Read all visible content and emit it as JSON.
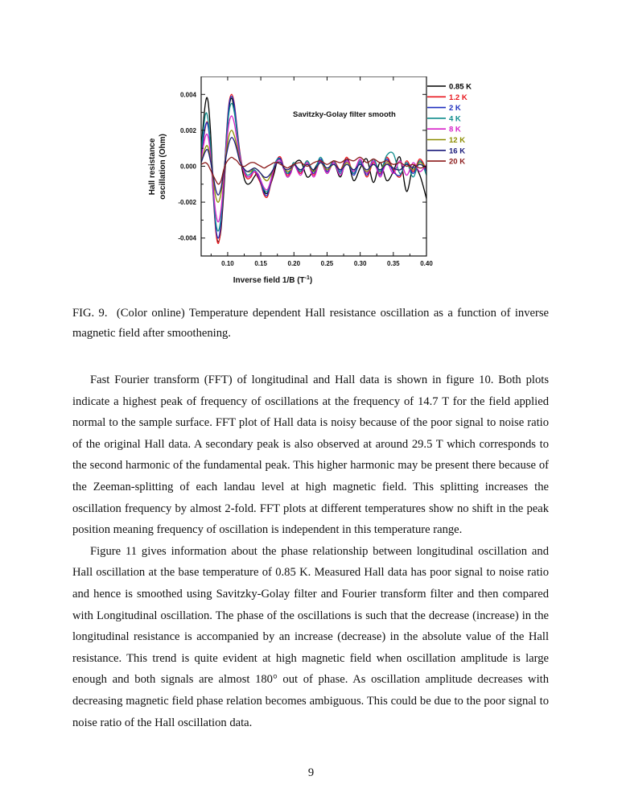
{
  "figure": {
    "label": "FIG. 9.",
    "caption": "(Color online) Temperature dependent Hall resistance oscillation as a function of inverse magnetic field after smoothening."
  },
  "chart_data": {
    "type": "line",
    "annotation": "Savitzky-Golay filter smooth",
    "xlabel": "Inverse field 1/B (T⁻¹)",
    "ylabel_line1": "Hall resistance",
    "ylabel_line2": "oscillation  (Ohm)",
    "xlim": [
      0.06,
      0.4
    ],
    "ylim": [
      -0.005,
      0.005
    ],
    "xticks": [
      0.1,
      0.15,
      0.2,
      0.25,
      0.3,
      0.35,
      0.4
    ],
    "xtick_labels": [
      "0.10",
      "0.15",
      "0.20",
      "0.25",
      "0.30",
      "0.35",
      "0.40"
    ],
    "yticks": [
      -0.004,
      -0.002,
      0.0,
      0.002,
      0.004
    ],
    "ytick_labels": [
      "-0.004",
      "-0.002",
      "0.000",
      "0.002",
      "0.004"
    ],
    "legend_position": "right, outside plot",
    "series": [
      {
        "name": "0.85 K",
        "color": "#000000",
        "x": [
          0.06,
          0.066,
          0.07,
          0.074,
          0.078,
          0.082,
          0.086,
          0.09,
          0.094,
          0.098,
          0.102,
          0.106,
          0.11,
          0.114,
          0.118,
          0.122,
          0.126,
          0.13,
          0.135,
          0.14,
          0.145,
          0.15,
          0.155,
          0.16,
          0.165,
          0.17,
          0.175,
          0.18,
          0.185,
          0.19,
          0.195,
          0.2,
          0.21,
          0.22,
          0.23,
          0.24,
          0.25,
          0.26,
          0.27,
          0.28,
          0.29,
          0.3,
          0.31,
          0.32,
          0.33,
          0.34,
          0.35,
          0.36,
          0.37,
          0.38,
          0.39,
          0.4
        ],
        "y": [
          0.001,
          0.0034,
          0.0037,
          0.002,
          -0.001,
          -0.0035,
          -0.0042,
          -0.0035,
          -0.0015,
          0.001,
          0.0032,
          0.0038,
          0.0031,
          0.002,
          0.0008,
          -0.0002,
          -0.0008,
          -0.001,
          -0.0009,
          -0.0006,
          -0.0004,
          -0.0008,
          -0.0014,
          -0.0015,
          -0.001,
          -0.0004,
          0.0003,
          0.0004,
          -0.0002,
          -0.0006,
          -0.0004,
          0.0001,
          0.0003,
          -0.0006,
          -0.0002,
          0.0003,
          -0.0004,
          0.0002,
          -0.0006,
          0.0004,
          -0.0008,
          -0.0001,
          0.0004,
          -0.0009,
          0.0002,
          -0.0008,
          -0.0003,
          0.0005,
          -0.0014,
          0.0,
          -0.0005,
          -0.0018
        ]
      },
      {
        "name": "1.2 K",
        "color": "#e8151c",
        "x": [
          0.06,
          0.066,
          0.07,
          0.074,
          0.078,
          0.082,
          0.086,
          0.09,
          0.094,
          0.098,
          0.102,
          0.106,
          0.11,
          0.114,
          0.118,
          0.122,
          0.126,
          0.13,
          0.135,
          0.14,
          0.145,
          0.15,
          0.155,
          0.16,
          0.165,
          0.17,
          0.175,
          0.18,
          0.185,
          0.19,
          0.195,
          0.2,
          0.21,
          0.22,
          0.23,
          0.24,
          0.25,
          0.26,
          0.27,
          0.28,
          0.29,
          0.3,
          0.31,
          0.32,
          0.33,
          0.34,
          0.35,
          0.36,
          0.37,
          0.38,
          0.39,
          0.4
        ],
        "y": [
          0.0005,
          0.0021,
          0.0024,
          0.001,
          -0.0015,
          -0.0036,
          -0.0043,
          -0.0033,
          -0.001,
          0.0017,
          0.0035,
          0.004,
          0.0035,
          0.0022,
          0.0009,
          0.0,
          -0.0005,
          -0.0007,
          -0.0006,
          -0.0003,
          -0.0006,
          -0.001,
          -0.0016,
          -0.0017,
          -0.001,
          -0.0002,
          0.0004,
          0.0005,
          -0.0001,
          -0.0005,
          -0.0003,
          0.0002,
          -0.0004,
          0.0003,
          -0.0005,
          0.0004,
          -0.0003,
          0.0003,
          -0.0002,
          0.0005,
          -0.0004,
          0.0003,
          -0.0006,
          0.0002,
          -0.0004,
          0.0005,
          -0.0002,
          -0.0006,
          0.0003,
          -0.0003,
          0.0004,
          -0.0002
        ]
      },
      {
        "name": "2 K",
        "color": "#1f2fbf",
        "x": [
          0.06,
          0.066,
          0.07,
          0.074,
          0.078,
          0.082,
          0.086,
          0.09,
          0.094,
          0.098,
          0.102,
          0.106,
          0.11,
          0.114,
          0.118,
          0.122,
          0.126,
          0.13,
          0.135,
          0.14,
          0.145,
          0.15,
          0.155,
          0.16,
          0.165,
          0.17,
          0.175,
          0.18,
          0.185,
          0.19,
          0.195,
          0.2,
          0.21,
          0.22,
          0.23,
          0.24,
          0.25,
          0.26,
          0.27,
          0.28,
          0.29,
          0.3,
          0.31,
          0.32,
          0.33,
          0.34,
          0.35,
          0.36,
          0.37,
          0.38,
          0.39,
          0.4
        ],
        "y": [
          0.0006,
          0.0022,
          0.0023,
          0.001,
          -0.0014,
          -0.0034,
          -0.004,
          -0.0031,
          -0.0009,
          0.0016,
          0.0034,
          0.0039,
          0.0034,
          0.0021,
          0.0008,
          0.0,
          -0.0004,
          -0.0006,
          -0.0005,
          -0.0002,
          -0.0005,
          -0.0009,
          -0.0015,
          -0.0016,
          -0.0009,
          -0.0001,
          0.0004,
          0.0004,
          -0.0001,
          -0.0004,
          -0.0003,
          0.0001,
          -0.0003,
          0.0002,
          -0.0004,
          0.0004,
          -0.0003,
          0.0002,
          -0.0003,
          0.0004,
          -0.0005,
          0.0002,
          -0.0005,
          0.0003,
          -0.0005,
          0.0004,
          -0.0003,
          -0.0005,
          0.0002,
          -0.0004,
          0.0003,
          -0.0003
        ]
      },
      {
        "name": "4 K",
        "color": "#0e8c8c",
        "x": [
          0.06,
          0.066,
          0.07,
          0.074,
          0.078,
          0.082,
          0.086,
          0.09,
          0.094,
          0.098,
          0.102,
          0.106,
          0.11,
          0.114,
          0.118,
          0.122,
          0.126,
          0.13,
          0.135,
          0.14,
          0.145,
          0.15,
          0.155,
          0.16,
          0.165,
          0.17,
          0.175,
          0.18,
          0.185,
          0.19,
          0.195,
          0.2,
          0.21,
          0.22,
          0.23,
          0.24,
          0.25,
          0.26,
          0.27,
          0.28,
          0.29,
          0.3,
          0.31,
          0.32,
          0.33,
          0.34,
          0.35,
          0.36,
          0.37,
          0.38,
          0.39,
          0.4
        ],
        "y": [
          0.0008,
          0.0028,
          0.0027,
          0.0012,
          -0.0012,
          -0.0031,
          -0.0036,
          -0.0028,
          -0.0008,
          0.0014,
          0.003,
          0.0035,
          0.003,
          0.0019,
          0.0007,
          0.0,
          -0.0003,
          -0.0005,
          -0.0004,
          -0.0002,
          -0.0004,
          -0.0008,
          -0.0013,
          -0.0014,
          -0.0008,
          0.0,
          0.0004,
          0.0003,
          -0.0002,
          -0.0004,
          -0.0002,
          0.0002,
          -0.0003,
          0.0003,
          -0.0003,
          0.0005,
          -0.0002,
          0.0003,
          -0.0004,
          0.0003,
          -0.0004,
          0.0003,
          -0.0004,
          0.0004,
          -0.0003,
          0.0006,
          0.0007,
          -0.0004,
          0.0002,
          -0.0006,
          0.0003,
          -0.0005
        ]
      },
      {
        "name": "8 K",
        "color": "#d61ec8",
        "x": [
          0.06,
          0.066,
          0.07,
          0.074,
          0.078,
          0.082,
          0.086,
          0.09,
          0.094,
          0.098,
          0.102,
          0.106,
          0.11,
          0.114,
          0.118,
          0.122,
          0.126,
          0.13,
          0.135,
          0.14,
          0.145,
          0.15,
          0.155,
          0.16,
          0.165,
          0.17,
          0.175,
          0.18,
          0.185,
          0.19,
          0.195,
          0.2,
          0.21,
          0.22,
          0.23,
          0.24,
          0.25,
          0.26,
          0.27,
          0.28,
          0.29,
          0.3,
          0.31,
          0.32,
          0.33,
          0.34,
          0.35,
          0.36,
          0.37,
          0.38,
          0.39,
          0.4
        ],
        "y": [
          0.0004,
          0.0016,
          0.0017,
          0.0007,
          -0.0011,
          -0.0026,
          -0.0031,
          -0.0024,
          -0.0008,
          0.0011,
          0.0024,
          0.0028,
          0.0024,
          0.0015,
          0.0006,
          0.0,
          -0.0004,
          -0.0006,
          -0.0005,
          -0.0003,
          -0.0004,
          -0.0008,
          -0.0012,
          -0.0013,
          -0.0008,
          -0.0001,
          0.0003,
          0.0003,
          -0.0002,
          -0.0006,
          -0.0004,
          0.0001,
          -0.0005,
          0.0002,
          -0.0006,
          0.0003,
          -0.0004,
          0.0002,
          -0.0005,
          0.0003,
          -0.0003,
          0.0004,
          -0.0004,
          0.0003,
          -0.0006,
          0.0002,
          -0.0004,
          0.0003,
          -0.0005,
          0.0002,
          -0.0003,
          0.0001
        ]
      },
      {
        "name": "12 K",
        "color": "#8c8c00",
        "x": [
          0.06,
          0.066,
          0.07,
          0.074,
          0.078,
          0.082,
          0.086,
          0.09,
          0.094,
          0.098,
          0.102,
          0.106,
          0.11,
          0.114,
          0.118,
          0.122,
          0.126,
          0.13,
          0.135,
          0.14,
          0.145,
          0.15,
          0.155,
          0.16,
          0.165,
          0.17,
          0.175,
          0.18,
          0.185,
          0.19,
          0.195,
          0.2,
          0.21,
          0.22,
          0.23,
          0.24,
          0.25,
          0.26,
          0.27,
          0.28,
          0.29,
          0.3,
          0.31,
          0.32,
          0.33,
          0.34,
          0.35,
          0.36,
          0.37,
          0.38,
          0.39,
          0.4
        ],
        "y": [
          0.0002,
          0.001,
          0.0011,
          0.0004,
          -0.0007,
          -0.0017,
          -0.002,
          -0.0015,
          -0.0004,
          0.0008,
          0.0017,
          0.002,
          0.0017,
          0.0011,
          0.0004,
          0.0,
          -0.0002,
          -0.0003,
          -0.0003,
          -0.0001,
          -0.0002,
          -0.0004,
          -0.0007,
          -0.0008,
          -0.0005,
          -0.0001,
          0.0002,
          0.0002,
          -0.0001,
          -0.0003,
          -0.0002,
          0.0001,
          -0.0002,
          0.0001,
          -0.0003,
          0.0002,
          -0.0002,
          0.0001,
          -0.0002,
          0.0002,
          -0.0002,
          0.0001,
          -0.0003,
          0.0001,
          -0.0002,
          0.0002,
          -0.0001,
          -0.0002,
          0.0001,
          -0.0002,
          0.0002,
          -0.0001
        ]
      },
      {
        "name": "16 K",
        "color": "#1a1a7a",
        "x": [
          0.06,
          0.066,
          0.07,
          0.074,
          0.078,
          0.082,
          0.086,
          0.09,
          0.094,
          0.098,
          0.102,
          0.106,
          0.11,
          0.114,
          0.118,
          0.122,
          0.126,
          0.13,
          0.135,
          0.14,
          0.145,
          0.15,
          0.155,
          0.16,
          0.165,
          0.17,
          0.175,
          0.18,
          0.185,
          0.19,
          0.195,
          0.2,
          0.21,
          0.22,
          0.23,
          0.24,
          0.25,
          0.26,
          0.27,
          0.28,
          0.29,
          0.3,
          0.31,
          0.32,
          0.33,
          0.34,
          0.35,
          0.36,
          0.37,
          0.38,
          0.39,
          0.4
        ],
        "y": [
          0.0002,
          0.0008,
          0.0009,
          0.0003,
          -0.0005,
          -0.0013,
          -0.0016,
          -0.0012,
          -0.0003,
          0.0006,
          0.0013,
          0.0016,
          0.0014,
          0.0009,
          0.0003,
          0.0,
          -0.0002,
          -0.0003,
          -0.0002,
          -0.0001,
          -0.0002,
          -0.0004,
          -0.0006,
          -0.0006,
          -0.0004,
          -0.0001,
          0.0002,
          0.0002,
          -0.0001,
          -0.0002,
          -0.0001,
          0.0001,
          -0.0002,
          0.0001,
          -0.0002,
          0.0002,
          -0.0001,
          0.0001,
          -0.0002,
          0.0001,
          -0.0002,
          0.0001,
          -0.0002,
          0.0001,
          -0.0002,
          0.0001,
          -0.0001,
          -0.0002,
          0.0001,
          -0.0001,
          0.0001,
          -0.0001
        ]
      },
      {
        "name": "20 K",
        "color": "#8b1a1a",
        "x": [
          0.06,
          0.066,
          0.07,
          0.074,
          0.078,
          0.082,
          0.086,
          0.09,
          0.094,
          0.098,
          0.102,
          0.106,
          0.11,
          0.114,
          0.118,
          0.122,
          0.126,
          0.13,
          0.135,
          0.14,
          0.145,
          0.15,
          0.155,
          0.16,
          0.165,
          0.17,
          0.175,
          0.18,
          0.185,
          0.19,
          0.195,
          0.2,
          0.21,
          0.22,
          0.23,
          0.24,
          0.25,
          0.26,
          0.27,
          0.28,
          0.29,
          0.3,
          0.31,
          0.32,
          0.33,
          0.34,
          0.35,
          0.36,
          0.37,
          0.38,
          0.39,
          0.4
        ],
        "y": [
          0.0001,
          0.0002,
          0.0001,
          -0.0002,
          -0.0005,
          -0.0008,
          -0.001,
          -0.0008,
          -0.0002,
          0.0002,
          0.0004,
          0.0005,
          0.0004,
          0.0003,
          0.0001,
          0.0,
          0.0,
          0.0001,
          0.0002,
          0.0002,
          0.0001,
          0.0,
          -0.0001,
          0.0,
          0.0001,
          0.0002,
          0.0002,
          0.0001,
          0.0,
          -0.0001,
          0.0,
          0.0001,
          0.0002,
          0.0,
          0.0002,
          0.0003,
          0.0001,
          0.0003,
          0.0002,
          0.0004,
          0.0003,
          0.0005,
          0.0002,
          0.0004,
          0.0002,
          0.0003,
          0.0001,
          0.0002,
          0.0,
          0.0001,
          -0.0001,
          0.0
        ]
      }
    ]
  },
  "body": {
    "para1": "Fast Fourier transform (FFT) of longitudinal and Hall data is shown in figure 10. Both plots indicate a highest peak of frequency of oscillations at the frequency of 14.7 T for the field applied normal to the sample surface. FFT plot of Hall data is noisy because of the poor signal to noise ratio of the original Hall data. A secondary peak is also observed at around 29.5 T which corresponds to the second harmonic of the fundamental peak. This higher harmonic may be present there because of the Zeeman-splitting of each landau level at high magnetic field. This splitting increases the oscillation frequency by almost 2-fold. FFT plots at different temperatures show no shift in the peak position meaning frequency of oscillation is independent in this temperature range.",
    "para2": "Figure 11 gives information about the phase relationship between longitudinal oscillation and Hall oscillation at the base temperature of 0.85 K. Measured Hall data has poor signal to noise ratio and hence is smoothed using Savitzky-Golay filter and Fourier transform filter and then compared with Longitudinal oscillation. The phase of the oscillations is such that the decrease (increase) in the longitudinal resistance is accompanied by an increase (decrease) in the absolute value of the Hall resistance. This trend is quite evident at high magnetic field when oscillation amplitude is large enough and both signals are almost 180° out of phase. As oscillation amplitude decreases with decreasing magnetic field phase relation becomes ambiguous. This could be due to the poor signal to noise ratio of the Hall oscillation data."
  },
  "page_number": "9"
}
